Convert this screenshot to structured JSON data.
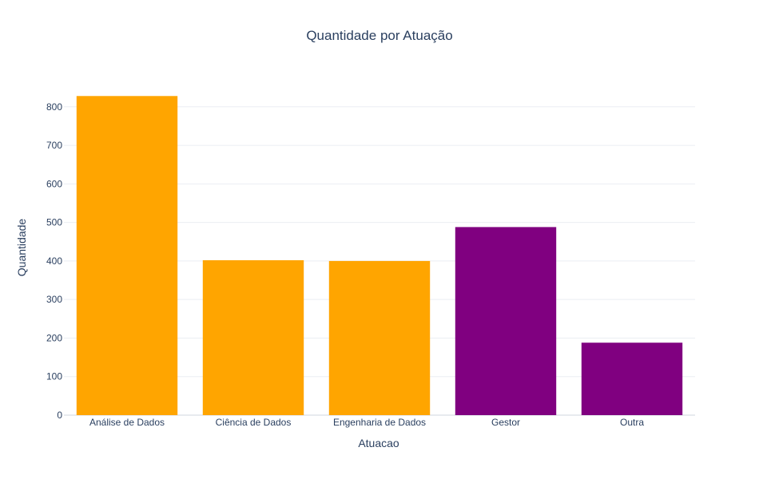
{
  "chart_data": {
    "type": "bar",
    "title": "Quantidade por Atuação",
    "xlabel": "Atuacao",
    "ylabel": "Quantidade",
    "categories": [
      "Análise de Dados",
      "Ciência de Dados",
      "Engenharia de Dados",
      "Gestor",
      "Outra"
    ],
    "values": [
      828,
      402,
      400,
      488,
      188
    ],
    "bar_colors": [
      "#FFA500",
      "#FFA500",
      "#FFA500",
      "#800080",
      "#800080"
    ],
    "ylim": [
      0,
      870
    ],
    "yticks": [
      0,
      100,
      200,
      300,
      400,
      500,
      600,
      700,
      800
    ],
    "grid": true,
    "legend": "none"
  }
}
